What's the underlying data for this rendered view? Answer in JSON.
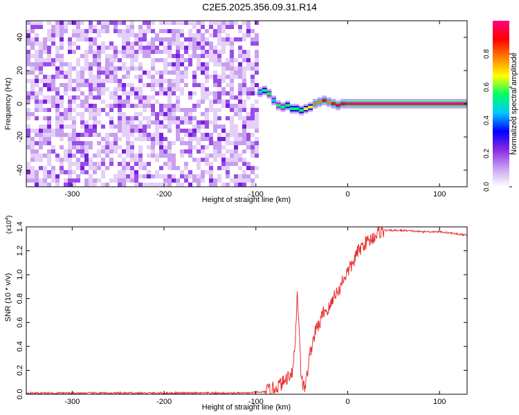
{
  "title": "C2E5.2025.356.09.31.R14",
  "chart_data": [
    {
      "type": "heatmap",
      "xlabel": "Height of straight line (km)",
      "ylabel": "Frequency (Hz)",
      "xlim": [
        -350,
        130
      ],
      "ylim": [
        -50,
        50
      ],
      "xticks": [
        -300,
        -200,
        -100,
        0,
        100
      ],
      "yticks": [
        -40,
        -20,
        0,
        20,
        40
      ],
      "colorbar": {
        "label": "Normalized spectral amplitude",
        "range": [
          0,
          1
        ],
        "ticks": [
          "0.0",
          "0.2",
          "0.4",
          "0.6",
          "0.8"
        ],
        "tick_values": [
          0.0,
          0.2,
          0.4,
          0.6,
          0.8
        ],
        "colors": [
          "#ffffff",
          "#c8a0f0",
          "#8a2be2",
          "#0000ff",
          "#00c8ff",
          "#00ff66",
          "#ffff00",
          "#ff8000",
          "#ff0000",
          "#ff0080"
        ]
      },
      "noise_region_x": [
        -350,
        -98
      ],
      "noise_level": 0.15,
      "signal_track": {
        "x": [
          -98,
          -93,
          -88,
          -83,
          -78,
          -73,
          -68,
          -63,
          -58,
          -53,
          -48,
          -43,
          -38,
          -33,
          -28,
          -23,
          -18,
          -13,
          -8,
          -3,
          0,
          130
        ],
        "freq": [
          7,
          8,
          6,
          2,
          -1,
          -2,
          -1,
          -3,
          -3,
          -4,
          -3,
          -2,
          0,
          1,
          2,
          1,
          0,
          -1,
          0,
          0,
          0,
          0
        ],
        "amplitude": [
          0.45,
          0.55,
          0.5,
          0.45,
          0.5,
          0.5,
          0.55,
          0.55,
          0.6,
          0.6,
          0.65,
          0.7,
          0.75,
          0.8,
          0.85,
          0.8,
          0.85,
          0.9,
          0.9,
          0.95,
          0.95,
          0.95
        ]
      }
    },
    {
      "type": "line",
      "xlabel": "Height of straight line (km)",
      "ylabel": "SNR (10 * v/v)",
      "y_multiplier": "(x10",
      "y_multiplier_exp": "4",
      "y_multiplier_close": ")",
      "xlim": [
        -350,
        130
      ],
      "ylim": [
        0,
        1.4
      ],
      "xticks": [
        -300,
        -200,
        -100,
        0,
        100
      ],
      "yticks": [
        "0.0",
        "0.2",
        "0.4",
        "0.6",
        "0.8",
        "1.0",
        "1.2",
        "1.4"
      ],
      "ytick_values": [
        0.0,
        0.2,
        0.4,
        0.6,
        0.8,
        1.0,
        1.2,
        1.4
      ],
      "series": [
        {
          "name": "SNR",
          "color": "#e83030",
          "x": [
            -350,
            -110,
            -90,
            -80,
            -70,
            -65,
            -60,
            -57,
            -55,
            -53,
            -51,
            -49,
            -47,
            -45,
            -42,
            -38,
            -34,
            -30,
            -26,
            -22,
            -18,
            -14,
            -10,
            -6,
            -2,
            2,
            6,
            10,
            14,
            18,
            22,
            26,
            30,
            35,
            40,
            60,
            80,
            100,
            120,
            130
          ],
          "values": [
            0.01,
            0.01,
            0.02,
            0.05,
            0.1,
            0.15,
            0.2,
            0.45,
            0.85,
            0.6,
            0.2,
            0.08,
            0.05,
            0.12,
            0.3,
            0.45,
            0.55,
            0.6,
            0.7,
            0.7,
            0.75,
            0.85,
            0.85,
            0.95,
            1.0,
            1.05,
            1.1,
            1.18,
            1.22,
            1.26,
            1.28,
            1.3,
            1.33,
            1.36,
            1.37,
            1.37,
            1.36,
            1.36,
            1.34,
            1.33
          ]
        }
      ]
    }
  ]
}
